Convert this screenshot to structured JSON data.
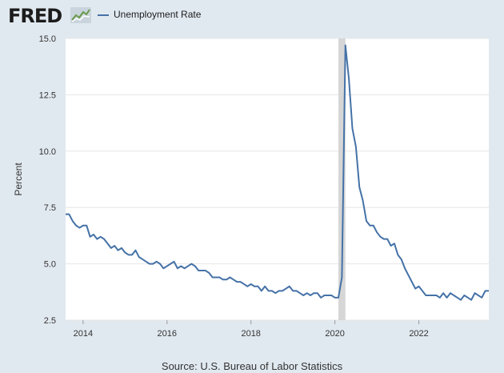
{
  "header": {
    "logo_text": "FRED",
    "logo_icon": "fred-line-chart-icon",
    "legend_label": "Unemployment Rate"
  },
  "footer": {
    "source": "Source: U.S. Bureau of Labor Statistics"
  },
  "colors": {
    "line": "#4572a7",
    "recession": "#d6d6d6",
    "background": "#e1e9f0",
    "plot": "#ffffff",
    "grid": "#e6e6e6"
  },
  "chart_data": {
    "type": "line",
    "title": "",
    "xlabel": "",
    "ylabel": "Percent",
    "xlim": [
      "2013-08",
      "2023-09"
    ],
    "ylim": [
      2.5,
      15.0
    ],
    "grid": true,
    "legend_position": "top-left",
    "yticks": [
      "2.5",
      "5.0",
      "7.5",
      "10.0",
      "12.5",
      "15.0"
    ],
    "xticks": [
      "2014",
      "2016",
      "2018",
      "2020",
      "2022"
    ],
    "recession_shading": {
      "start": "2020-02",
      "end": "2020-04"
    },
    "series": [
      {
        "name": "Unemployment Rate",
        "start": "2013-08",
        "frequency": "monthly",
        "values": [
          7.2,
          7.2,
          6.9,
          6.7,
          6.6,
          6.7,
          6.7,
          6.2,
          6.3,
          6.1,
          6.2,
          6.1,
          5.9,
          5.7,
          5.8,
          5.6,
          5.7,
          5.5,
          5.4,
          5.4,
          5.6,
          5.3,
          5.2,
          5.1,
          5.0,
          5.0,
          5.1,
          5.0,
          4.8,
          4.9,
          5.0,
          5.1,
          4.8,
          4.9,
          4.8,
          4.9,
          5.0,
          4.9,
          4.7,
          4.7,
          4.7,
          4.6,
          4.4,
          4.4,
          4.4,
          4.3,
          4.3,
          4.4,
          4.3,
          4.2,
          4.2,
          4.1,
          4.0,
          4.1,
          4.0,
          4.0,
          3.8,
          4.0,
          3.8,
          3.8,
          3.7,
          3.8,
          3.8,
          3.9,
          4.0,
          3.8,
          3.8,
          3.7,
          3.6,
          3.7,
          3.6,
          3.7,
          3.7,
          3.5,
          3.6,
          3.6,
          3.6,
          3.5,
          3.5,
          4.4,
          14.7,
          13.2,
          11.0,
          10.2,
          8.4,
          7.8,
          6.9,
          6.7,
          6.7,
          6.4,
          6.2,
          6.1,
          6.1,
          5.8,
          5.9,
          5.4,
          5.2,
          4.8,
          4.5,
          4.2,
          3.9,
          4.0,
          3.8,
          3.6,
          3.6,
          3.6,
          3.6,
          3.5,
          3.7,
          3.5,
          3.7,
          3.6,
          3.5,
          3.4,
          3.6,
          3.5,
          3.4,
          3.7,
          3.6,
          3.5,
          3.8,
          3.8
        ]
      }
    ]
  }
}
